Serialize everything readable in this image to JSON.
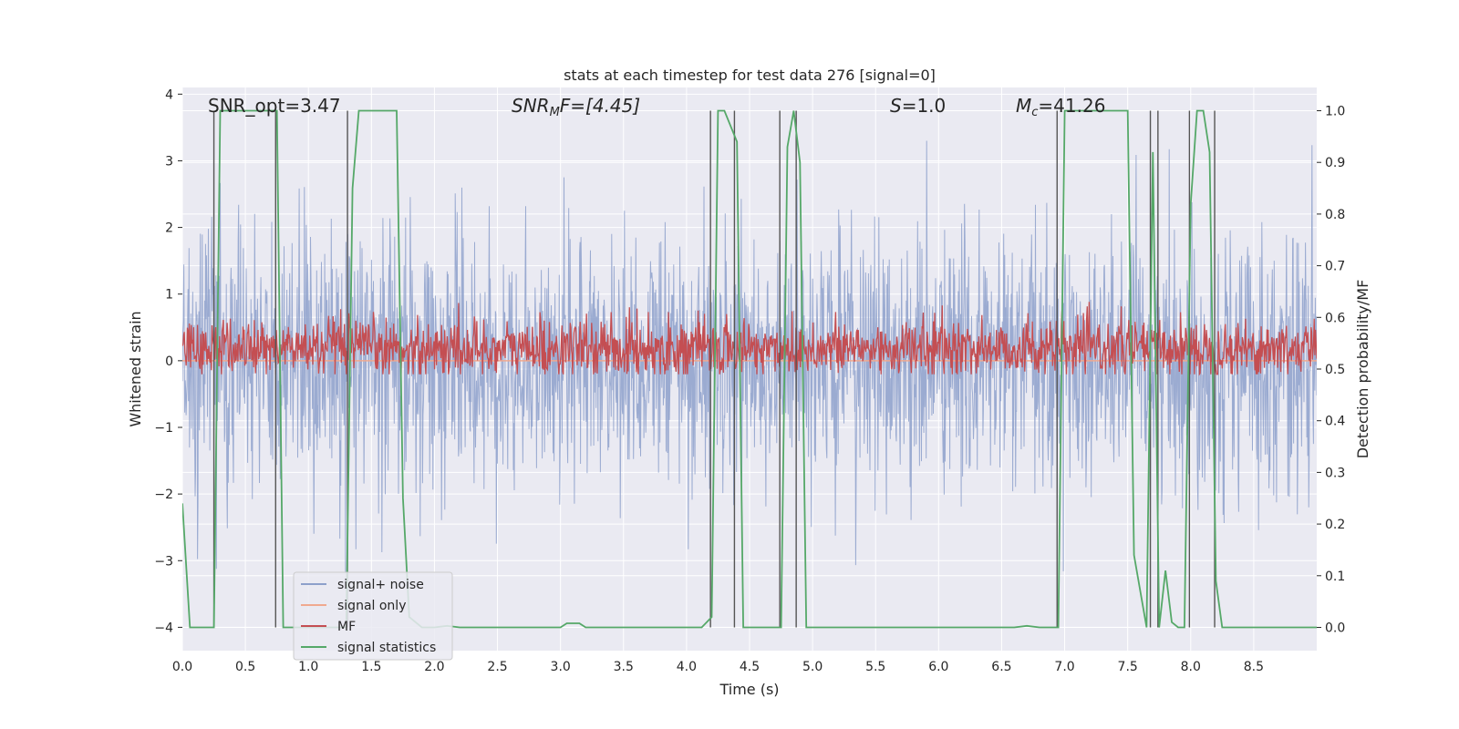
{
  "chart_data": {
    "type": "line",
    "title": "stats at each timestep for test data 276 [signal=0]",
    "xlabel": "Time (s)",
    "ylabel": "Whitened strain",
    "ylabel_right": "Detection probability/MF",
    "xlim": [
      0.0,
      9.0
    ],
    "ylim": [
      -4.35,
      4.1
    ],
    "ylim_right": [
      -0.045,
      1.045
    ],
    "xticks": [
      0.0,
      0.5,
      1.0,
      1.5,
      2.0,
      2.5,
      3.0,
      3.5,
      4.0,
      4.5,
      5.0,
      5.5,
      6.0,
      6.5,
      7.0,
      7.5,
      8.0,
      8.5
    ],
    "xtick_labels": [
      "0.0",
      "0.5",
      "1.0",
      "1.5",
      "2.0",
      "2.5",
      "3.0",
      "3.5",
      "4.0",
      "4.5",
      "5.0",
      "5.5",
      "6.0",
      "6.5",
      "7.0",
      "7.5",
      "8.0",
      "8.5"
    ],
    "yticks": [
      4,
      3,
      2,
      1,
      0,
      -1,
      -2,
      -3,
      -4
    ],
    "ytick_labels": [
      "4",
      "3",
      "2",
      "1",
      "0",
      "−1",
      "−2",
      "−3",
      "−4"
    ],
    "yticks_right": [
      1.0,
      0.9,
      0.8,
      0.7,
      0.6,
      0.5,
      0.4,
      0.3,
      0.2,
      0.1,
      0.0
    ],
    "ytick_labels_right": [
      "1.0",
      "0.9",
      "0.8",
      "0.7",
      "0.6",
      "0.5",
      "0.4",
      "0.3",
      "0.2",
      "0.1",
      "0.0"
    ],
    "annotations": {
      "snr_opt": "SNR_opt=3.47",
      "snr_mf_main": "SNR",
      "snr_mf_sub": "M",
      "snr_mf_rest": "F=[4.45]",
      "s_main": "S",
      "s_rest": "=1.0",
      "mc_main": "M",
      "mc_sub": "c",
      "mc_rest": "=41.26"
    },
    "legend": {
      "position": "lower-left",
      "entries": [
        {
          "label": "signal+ noise",
          "color": "#8da0cb"
        },
        {
          "label": "signal only",
          "color": "#f0a98f"
        },
        {
          "label": "MF",
          "color": "#c44e52"
        },
        {
          "label": "signal statistics",
          "color": "#55a868"
        }
      ]
    },
    "series": [
      {
        "name": "signal statistics",
        "axis": "right",
        "color": "#55a868",
        "x": [
          0.0,
          0.06,
          0.2,
          0.25,
          0.3,
          0.4,
          0.5,
          0.6,
          0.7,
          0.75,
          0.8,
          0.9,
          1.0,
          1.1,
          1.2,
          1.3,
          1.35,
          1.4,
          1.5,
          1.6,
          1.7,
          1.75,
          1.8,
          1.9,
          2.0,
          2.1,
          2.2,
          2.5,
          3.0,
          3.05,
          3.15,
          3.2,
          3.5,
          4.0,
          4.12,
          4.2,
          4.25,
          4.3,
          4.4,
          4.45,
          4.55,
          4.7,
          4.75,
          4.8,
          4.85,
          4.9,
          4.95,
          5.0,
          5.5,
          6.0,
          6.6,
          6.7,
          6.8,
          6.9,
          6.95,
          7.0,
          7.1,
          7.3,
          7.45,
          7.5,
          7.55,
          7.65,
          7.7,
          7.75,
          7.8,
          7.85,
          7.9,
          7.95,
          8.0,
          8.05,
          8.1,
          8.15,
          8.2,
          8.25,
          8.3,
          8.5,
          9.0
        ],
        "y": [
          0.24,
          0.0,
          0.0,
          0.0,
          1.0,
          1.0,
          1.0,
          1.0,
          1.0,
          1.0,
          0.0,
          0.0,
          0.0,
          0.0,
          0.0,
          0.0,
          0.85,
          1.0,
          1.0,
          1.0,
          1.0,
          0.25,
          0.02,
          0.0,
          0.0,
          0.003,
          0.0,
          0.0,
          0.0,
          0.008,
          0.008,
          0.0,
          0.0,
          0.0,
          0.0,
          0.02,
          1.0,
          1.0,
          0.94,
          0.0,
          0.0,
          0.0,
          0.0,
          0.93,
          1.0,
          0.9,
          0.0,
          0.0,
          0.0,
          0.0,
          0.0,
          0.003,
          0.0,
          0.0,
          0.0,
          1.0,
          1.0,
          1.0,
          1.0,
          1.0,
          0.14,
          0.0,
          0.92,
          0.0,
          0.11,
          0.01,
          0.0,
          0.0,
          0.82,
          1.0,
          1.0,
          0.92,
          0.09,
          0.0,
          0.0,
          0.0,
          0.0
        ]
      }
    ],
    "noise_series": {
      "name": "signal+ noise",
      "axis": "left",
      "color": "#8da0cb",
      "typical_range": [
        -1.7,
        1.7
      ],
      "extreme_range": [
        -4.0,
        3.3
      ]
    },
    "mf_series": {
      "name": "MF",
      "axis": "right",
      "color": "#c44e52",
      "typical_range": [
        0.5,
        0.58
      ],
      "extreme_range": [
        0.49,
        0.63
      ]
    },
    "signal_only_series": {
      "name": "signal only",
      "axis": "left",
      "color": "#f0a98f",
      "value": 0.0
    },
    "detection_lines": [
      0.25,
      0.74,
      1.31,
      4.19,
      4.38,
      4.74,
      4.87,
      6.94,
      7.68,
      7.74,
      7.99,
      8.19
    ]
  }
}
